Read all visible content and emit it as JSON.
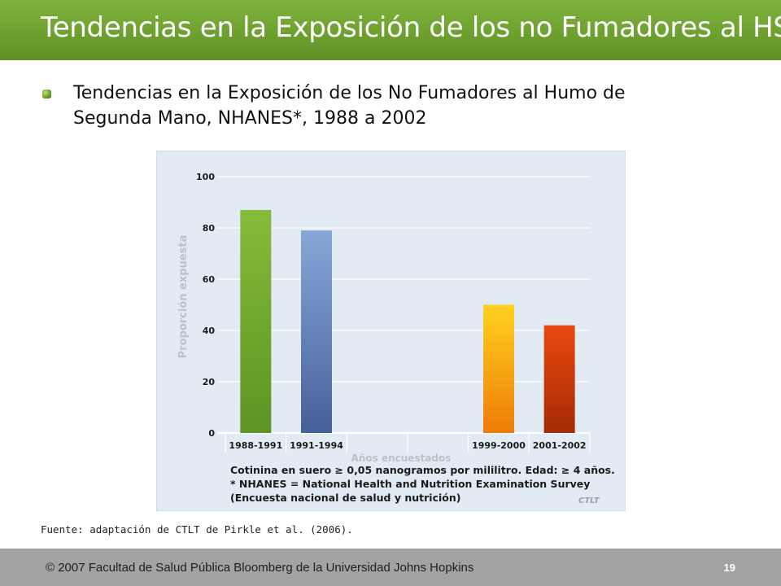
{
  "slide": {
    "title": "Tendencias en la Exposición de los no Fumadores al HSM",
    "subtitle": "Tendencias en la Exposición de los No Fumadores al Humo de Segunda Mano, NHANES*, 1988 a 2002",
    "source": "Fuente: adaptación de CTLT de Pirkle et al. (2006).",
    "copyright": "© 2007 Facultad de Salud Pública Bloomberg de la Universidad Johns Hopkins",
    "page_number": "19",
    "logo_text": "CTLT"
  },
  "chart_data": {
    "type": "bar",
    "categories": [
      "1988-1991",
      "1991-1994",
      "",
      "",
      "1999-2000",
      "2001-2002"
    ],
    "values": [
      87,
      79,
      null,
      null,
      50,
      42
    ],
    "ylabel": "Proporción expuesta",
    "xlabel": "Años encuestados",
    "ylim": [
      0,
      100
    ],
    "yticks": [
      0,
      20,
      40,
      60,
      80,
      100
    ],
    "grid": true,
    "bar_colors": [
      [
        "#86bb3a",
        "#5d9322"
      ],
      [
        "#86a8d8",
        "#46609a"
      ],
      null,
      null,
      [
        "#ffd21f",
        "#ef7c08"
      ],
      [
        "#e84a10",
        "#a52a05"
      ]
    ],
    "notes": [
      "Cotinina en suero ≥ 0,05 nanogramos por mililitro.   Edad: ≥ 4 años.",
      "* NHANES = National Health and Nutrition Examination Survey",
      "(Encuesta nacional de salud y nutrición)"
    ]
  }
}
